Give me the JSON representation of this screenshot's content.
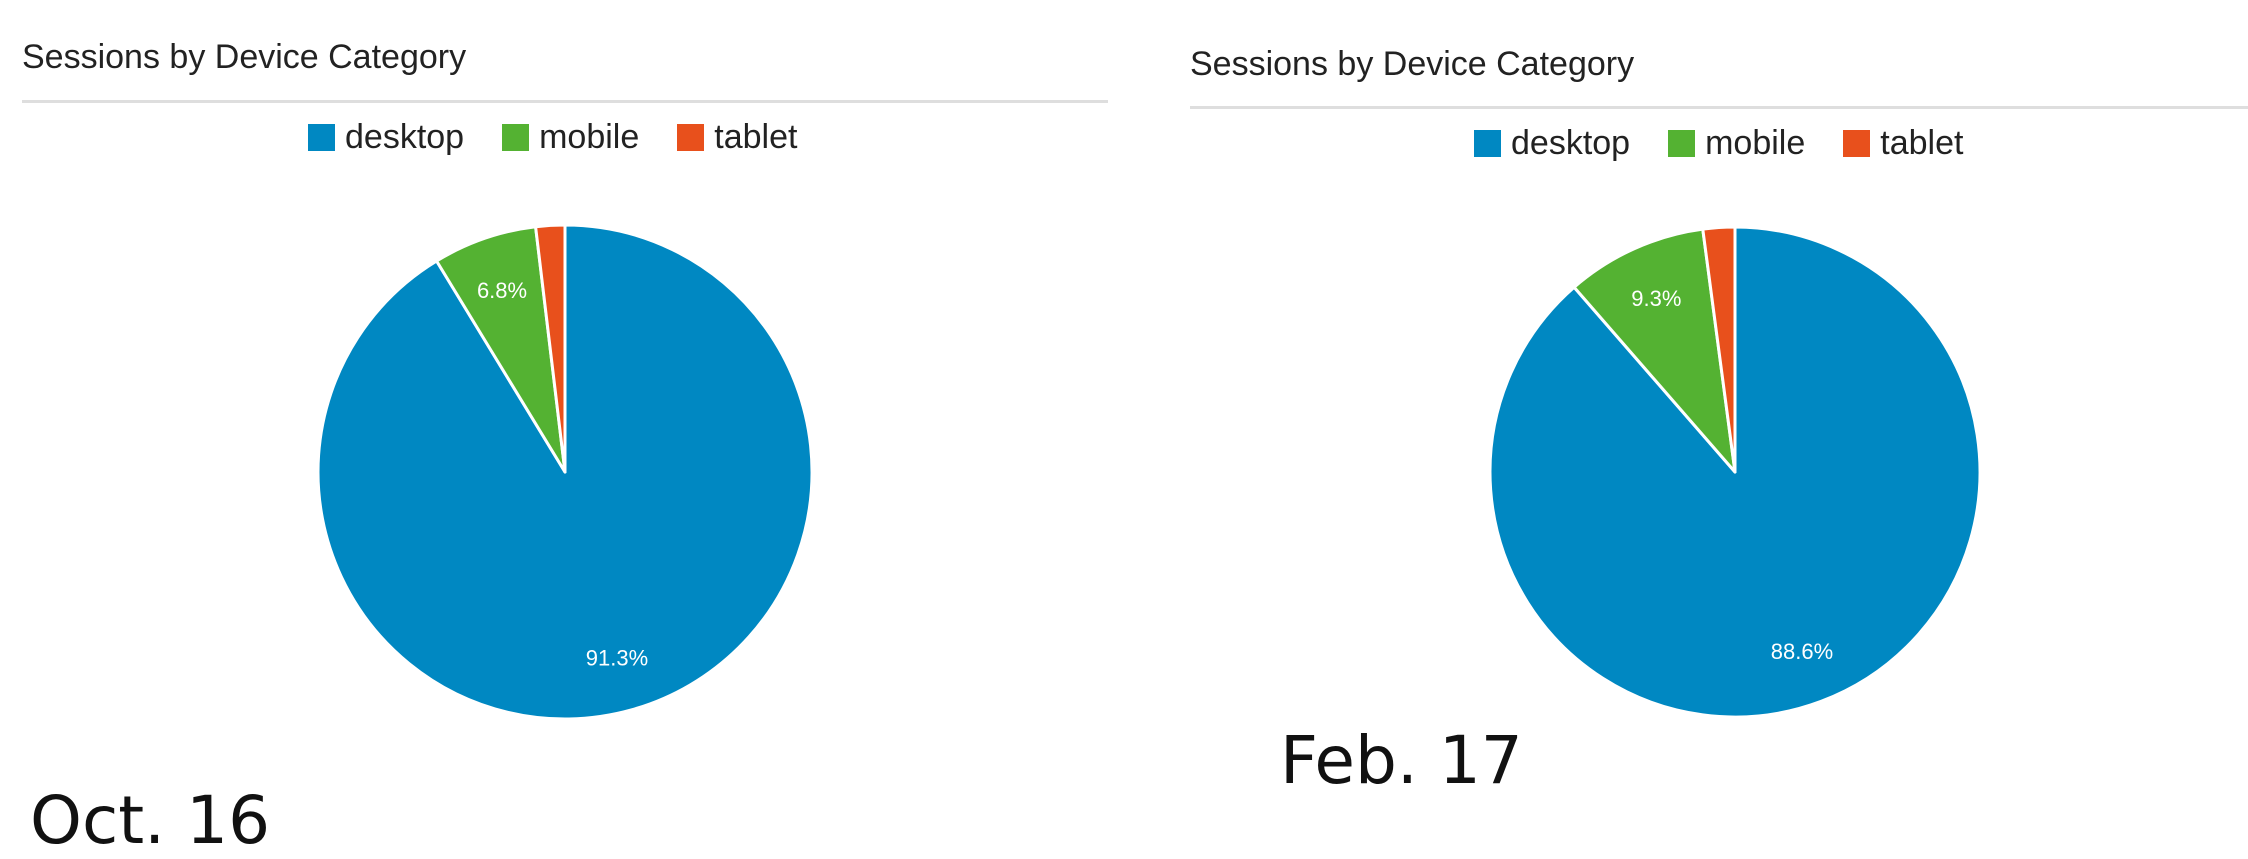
{
  "colors": {
    "desktop": "#0088c2",
    "mobile": "#54b232",
    "tablet": "#e8501c",
    "slice_border": "#ffffff",
    "label": "#ffffff"
  },
  "chart_data": [
    {
      "type": "pie",
      "title": "Sessions by Device Category",
      "date_label": "Oct. 16",
      "legend_position": "top-center",
      "slices": [
        {
          "label": "desktop",
          "value": 91.3,
          "shown_label": "91.3%",
          "color": "#0088c2"
        },
        {
          "label": "mobile",
          "value": 6.8,
          "shown_label": "6.8%",
          "color": "#54b232"
        },
        {
          "label": "tablet",
          "value": 1.9,
          "shown_label": "",
          "color": "#e8501c"
        }
      ]
    },
    {
      "type": "pie",
      "title": "Sessions by Device Category",
      "date_label": "Feb. 17",
      "legend_position": "top-center",
      "slices": [
        {
          "label": "desktop",
          "value": 88.6,
          "shown_label": "88.6%",
          "color": "#0088c2"
        },
        {
          "label": "mobile",
          "value": 9.3,
          "shown_label": "9.3%",
          "color": "#54b232"
        },
        {
          "label": "tablet",
          "value": 2.1,
          "shown_label": "",
          "color": "#e8501c"
        }
      ]
    }
  ]
}
